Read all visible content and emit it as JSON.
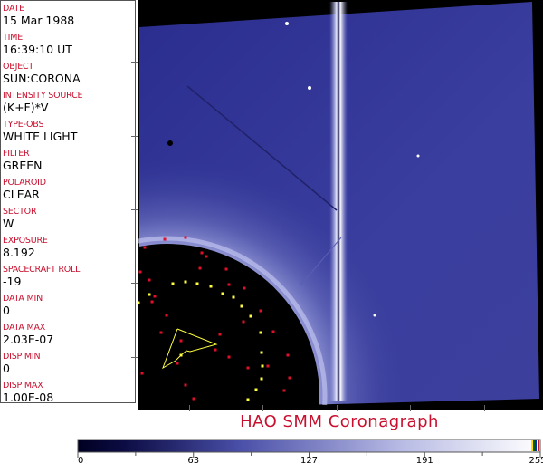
{
  "header_fields": [
    {
      "label": "DATE",
      "value": "15 Mar 1988"
    },
    {
      "label": "TIME",
      "value": "16:39:10 UT"
    },
    {
      "label": "OBJECT",
      "value": "SUN:CORONA"
    },
    {
      "label": "INTENSITY SOURCE",
      "value": "(K+F)*V"
    },
    {
      "label": "TYPE-OBS",
      "value": "WHITE LIGHT"
    },
    {
      "label": "FILTER",
      "value": "GREEN"
    },
    {
      "label": "POLAROID",
      "value": "CLEAR"
    },
    {
      "label": "SECTOR",
      "value": "W"
    },
    {
      "label": "EXPOSURE",
      "value": "8.192"
    },
    {
      "label": "SPACECRAFT ROLL",
      "value": "-19"
    },
    {
      "label": "DATA MIN",
      "value": "0"
    },
    {
      "label": "DATA MAX",
      "value": "2.03E-07"
    },
    {
      "label": "DISP MIN",
      "value": "0"
    },
    {
      "label": "DISP MAX",
      "value": "1.00E-08"
    }
  ],
  "title": "HAO   SMM Coronagraph",
  "colorbar": {
    "ticks": [
      "0",
      "63",
      "127",
      "191",
      "255"
    ],
    "colors": {
      "low": "#000022",
      "mid": "#4a4fa8",
      "high": "#ffffff"
    }
  },
  "colors": {
    "label": "#c8102e",
    "marker_red": "#e0102a",
    "marker_yellow": "#ffff40"
  }
}
